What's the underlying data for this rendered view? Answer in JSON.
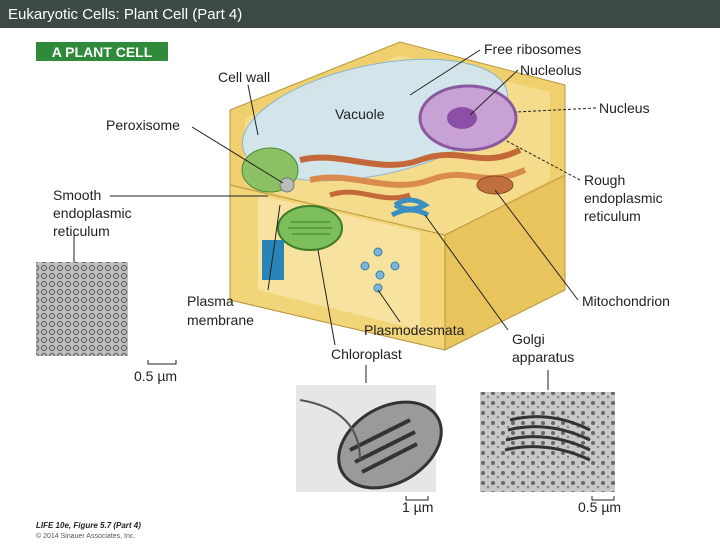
{
  "header": {
    "title": "Eukaryotic Cells: Plant Cell (Part 4)"
  },
  "figure": {
    "badge": "A PLANT CELL",
    "labels": {
      "free_ribosomes": [
        "Free ribosomes"
      ],
      "nucleolus": [
        "Nucleolus"
      ],
      "cell_wall": [
        "Cell wall"
      ],
      "vacuole": [
        "Vacuole"
      ],
      "nucleus": [
        "Nucleus"
      ],
      "peroxisome": [
        "Peroxisome"
      ],
      "rough_er": [
        "Rough",
        "endoplasmic",
        "reticulum"
      ],
      "smooth_er": [
        "Smooth",
        "endoplasmic",
        "reticulum"
      ],
      "plasma_membrane": [
        "Plasma",
        "membrane"
      ],
      "mitochondrion": [
        "Mitochondrion"
      ],
      "plasmodesmata": [
        "Plasmodesmata"
      ],
      "golgi": [
        "Golgi",
        "apparatus"
      ],
      "chloroplast": [
        "Chloroplast"
      ]
    },
    "scale_bars": [
      "0.5 µm",
      "1 µm",
      "0.5 µm"
    ]
  },
  "footer": {
    "citation": "LIFE 10e, Figure 5.7 (Part 4)",
    "copyright": "© 2014 Sinauer Associates, Inc."
  }
}
